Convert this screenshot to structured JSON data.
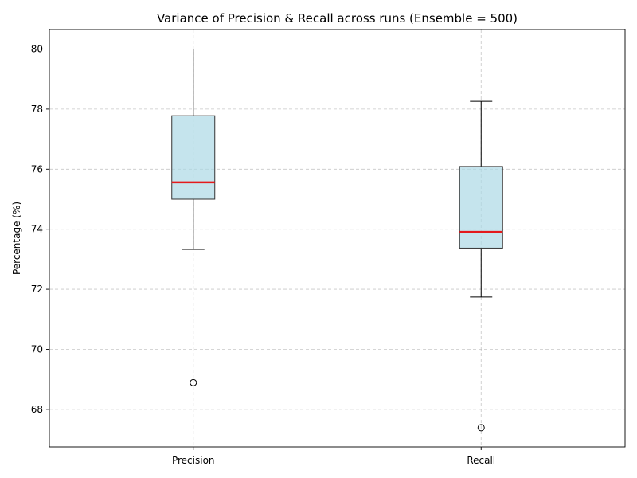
{
  "colors": {
    "box_fill": "#add8e6",
    "box_edge": "#333333",
    "median": "#e41a1c",
    "whisker": "#000000",
    "outlier_edge": "#000000",
    "background": "#ffffff"
  },
  "chart_data": {
    "type": "box",
    "title": "Variance of Precision & Recall across runs (Ensemble = 500)",
    "xlabel": "",
    "ylabel": "Percentage (%)",
    "ylim": [
      66.75,
      80.65
    ],
    "yticks": [
      68,
      70,
      72,
      74,
      76,
      78,
      80
    ],
    "grid": true,
    "categories": [
      "Precision",
      "Recall"
    ],
    "series": [
      {
        "category": "Precision",
        "whisker_low": 73.33,
        "q1": 75.0,
        "median": 75.56,
        "q3": 77.78,
        "whisker_high": 80.0,
        "outliers": [
          68.89
        ]
      },
      {
        "category": "Recall",
        "whisker_low": 71.74,
        "q1": 73.37,
        "median": 73.91,
        "q3": 76.09,
        "whisker_high": 78.26,
        "outliers": [
          67.39
        ]
      }
    ]
  }
}
